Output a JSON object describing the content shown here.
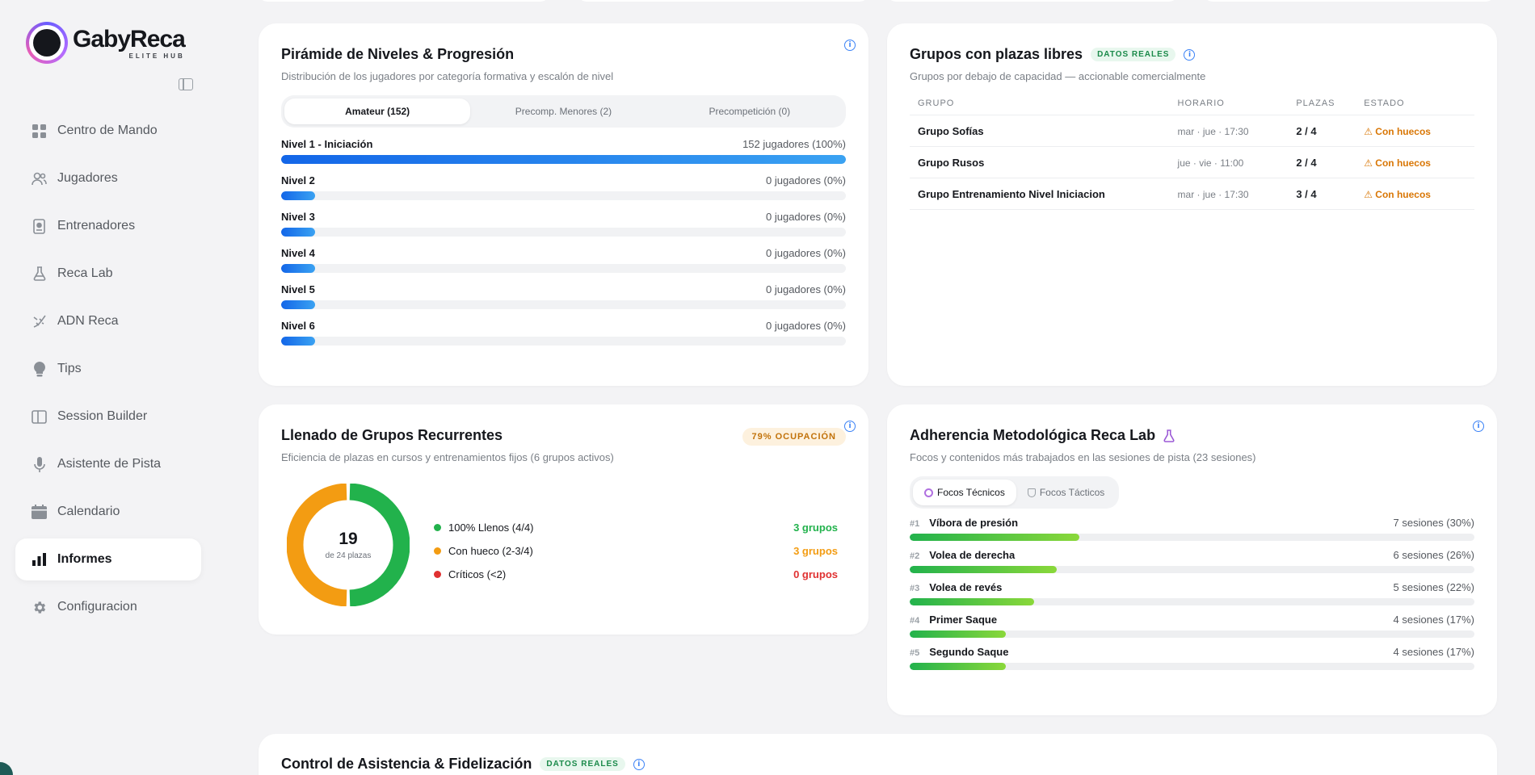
{
  "brand": {
    "name": "GabyReca",
    "sub": "ELITE HUB"
  },
  "nav": [
    {
      "label": "Centro de Mando",
      "icon": "grid-icon"
    },
    {
      "label": "Jugadores",
      "icon": "users-icon"
    },
    {
      "label": "Entrenadores",
      "icon": "id-badge-icon"
    },
    {
      "label": "Reca Lab",
      "icon": "flask-icon"
    },
    {
      "label": "ADN Reca",
      "icon": "dna-icon"
    },
    {
      "label": "Tips",
      "icon": "bulb-icon"
    },
    {
      "label": "Session Builder",
      "icon": "columns-icon"
    },
    {
      "label": "Asistente de Pista",
      "icon": "mic-icon"
    },
    {
      "label": "Calendario",
      "icon": "calendar-icon"
    },
    {
      "label": "Informes",
      "icon": "bar-chart-icon",
      "active": true
    },
    {
      "label": "Configuracion",
      "icon": "gear-icon"
    }
  ],
  "piramide": {
    "title": "Pirámide de Niveles & Progresión",
    "subtitle": "Distribución de los jugadores por categoría formativa y escalón de nivel",
    "tabs": [
      "Amateur (152)",
      "Precomp. Menores (2)",
      "Precompetición (0)"
    ],
    "levels": [
      {
        "name": "Nivel 1 - Iniciación",
        "value": "152 jugadores (100%)",
        "pct": 100
      },
      {
        "name": "Nivel 2",
        "value": "0 jugadores (0%)",
        "pct": 0
      },
      {
        "name": "Nivel 3",
        "value": "0 jugadores (0%)",
        "pct": 0
      },
      {
        "name": "Nivel 4",
        "value": "0 jugadores (0%)",
        "pct": 0
      },
      {
        "name": "Nivel 5",
        "value": "0 jugadores (0%)",
        "pct": 0
      },
      {
        "name": "Nivel 6",
        "value": "0 jugadores (0%)",
        "pct": 0
      }
    ]
  },
  "grupos": {
    "title": "Grupos con plazas libres",
    "badge": "DATOS REALES",
    "subtitle": "Grupos por debajo de capacidad — accionable comercialmente",
    "headers": [
      "GRUPO",
      "HORARIO",
      "PLAZAS",
      "ESTADO"
    ],
    "rows": [
      {
        "grupo": "Grupo Sofías",
        "horario": "mar · jue · 17:30",
        "plazas": "2 / 4",
        "estado": "Con huecos"
      },
      {
        "grupo": "Grupo Rusos",
        "horario": "jue · vie · 11:00",
        "plazas": "2 / 4",
        "estado": "Con huecos"
      },
      {
        "grupo": "Grupo Entrenamiento Nivel Iniciacion",
        "horario": "mar · jue · 17:30",
        "plazas": "3 / 4",
        "estado": "Con huecos"
      }
    ]
  },
  "llenado": {
    "title": "Llenado de Grupos Recurrentes",
    "badge": "79% OCUPACIÓN",
    "subtitle": "Eficiencia de plazas en cursos y entrenamientos fijos (6 grupos activos)",
    "center_value": "19",
    "center_label": "de 24 plazas",
    "legend": [
      {
        "label": "100% Llenos (4/4)",
        "value": "3 grupos",
        "color": "#22b24c"
      },
      {
        "label": "Con hueco (2-3/4)",
        "value": "3 grupos",
        "color": "#f39c12"
      },
      {
        "label": "Críticos (<2)",
        "value": "0 grupos",
        "color": "#e03131"
      }
    ]
  },
  "chart_data": {
    "type": "pie",
    "categories": [
      "100% Llenos (4/4)",
      "Con hueco (2-3/4)",
      "Críticos (<2)"
    ],
    "values": [
      3,
      3,
      0
    ],
    "colors": [
      "#22b24c",
      "#f39c12",
      "#e03131"
    ],
    "title": "Llenado de Grupos Recurrentes"
  },
  "adherencia": {
    "title": "Adherencia Metodológica Reca Lab",
    "subtitle": "Focos y contenidos más trabajados en las sesiones de pista (23 sesiones)",
    "tabs": [
      "Focos Técnicos",
      "Focos Tácticos"
    ],
    "items": [
      {
        "rank": "#1",
        "name": "Víbora de presión",
        "value": "7 sesiones (30%)",
        "pct": 30
      },
      {
        "rank": "#2",
        "name": "Volea de derecha",
        "value": "6 sesiones (26%)",
        "pct": 26
      },
      {
        "rank": "#3",
        "name": "Volea de revés",
        "value": "5 sesiones (22%)",
        "pct": 22
      },
      {
        "rank": "#4",
        "name": "Primer Saque",
        "value": "4 sesiones (17%)",
        "pct": 17
      },
      {
        "rank": "#5",
        "name": "Segundo Saque",
        "value": "4 sesiones (17%)",
        "pct": 17
      }
    ]
  },
  "asistencia": {
    "title": "Control de Asistencia & Fidelización",
    "badge": "DATOS REALES"
  }
}
